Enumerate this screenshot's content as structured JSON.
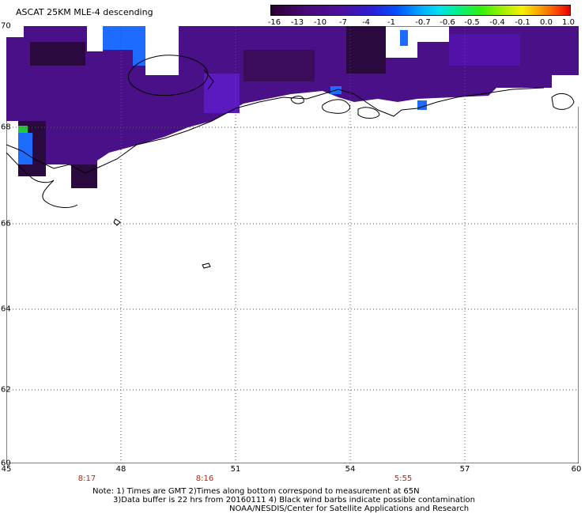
{
  "title": "ASCAT 25KM MLE-4 descending",
  "colorbar": {
    "ticks": [
      "-16",
      "-13",
      "-10",
      "-7",
      "-4",
      "-1",
      "-0.7",
      "-0.6",
      "-0.5",
      "-0.4",
      "-0.1",
      "0.0",
      "1.0"
    ]
  },
  "axes": {
    "lat_labels": [
      "70",
      "68",
      "66",
      "64",
      "62",
      "60"
    ],
    "lon_labels": [
      "45",
      "48",
      "51",
      "54",
      "57",
      "60"
    ]
  },
  "times": [
    "8:17",
    "8:16",
    "5:55"
  ],
  "notes": {
    "line1": "Note: 1) Times are GMT 2)Times along bottom correspond to measurement at 65N",
    "line2": "3)Data buffer is 22 hrs from 20160111 4) Black wind barbs indicate possible contamination",
    "line3": "NOAA/NESDIS/Center for Satellite Applications and Research"
  },
  "colors": {
    "dark": "#2a0a3e",
    "purple": "#4a1088",
    "violet": "#5212a8",
    "blue": "#1e6cff",
    "green": "#22c83c",
    "ice_land": "#ffffff"
  }
}
